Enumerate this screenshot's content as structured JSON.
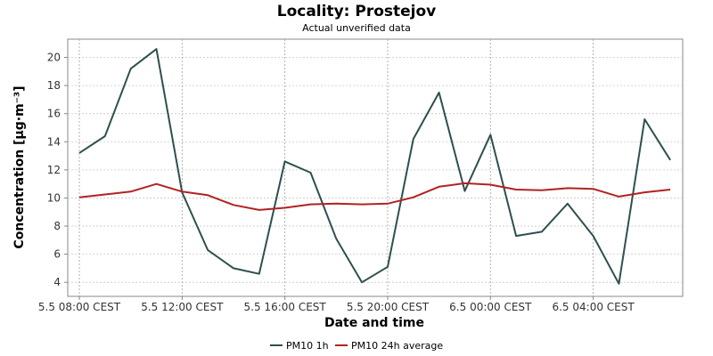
{
  "chart_data": {
    "type": "line",
    "title": "Locality: Prostejov",
    "subtitle": "Actual unverified data",
    "xlabel": "Date and time",
    "ylabel": "Concentration [µg·m⁻³]",
    "x_tick_labels": [
      "5.5 08:00 CEST",
      "5.5 12:00 CEST",
      "5.5 16:00 CEST",
      "5.5 20:00 CEST",
      "6.5 00:00 CEST",
      "6.5 04:00 CEST"
    ],
    "y_ticks": [
      4,
      6,
      8,
      10,
      12,
      14,
      16,
      18,
      20
    ],
    "ylim": [
      3.0,
      21.3
    ],
    "x_start": "5.5 08:00 CEST",
    "x_interval_hours": 1,
    "grid": true,
    "legend_position": "bottom",
    "x": [
      "5.5 08:00",
      "5.5 09:00",
      "5.5 10:00",
      "5.5 11:00",
      "5.5 12:00",
      "5.5 13:00",
      "5.5 14:00",
      "5.5 15:00",
      "5.5 16:00",
      "5.5 17:00",
      "5.5 18:00",
      "5.5 19:00",
      "5.5 20:00",
      "5.5 21:00",
      "5.5 22:00",
      "5.5 23:00",
      "6.5 00:00",
      "6.5 01:00",
      "6.5 02:00",
      "6.5 03:00",
      "6.5 04:00",
      "6.5 05:00",
      "6.5 06:00",
      "6.5 07:00"
    ],
    "series": [
      {
        "name": "PM10 1h",
        "color": "#2f4f4f",
        "values": [
          13.2,
          14.4,
          19.2,
          20.6,
          10.4,
          6.3,
          5.0,
          4.6,
          12.6,
          11.8,
          7.1,
          4.0,
          5.1,
          14.2,
          17.5,
          10.5,
          14.5,
          7.3,
          7.6,
          9.6,
          7.3,
          3.9,
          15.6,
          12.7
        ]
      },
      {
        "name": "PM10 24h average",
        "color": "#b22222",
        "values": [
          10.05,
          10.25,
          10.45,
          11.0,
          10.45,
          10.2,
          9.5,
          9.15,
          9.3,
          9.55,
          9.6,
          9.55,
          9.6,
          10.05,
          10.8,
          11.05,
          10.95,
          10.6,
          10.55,
          10.7,
          10.65,
          10.1,
          10.4,
          10.6
        ]
      }
    ]
  }
}
